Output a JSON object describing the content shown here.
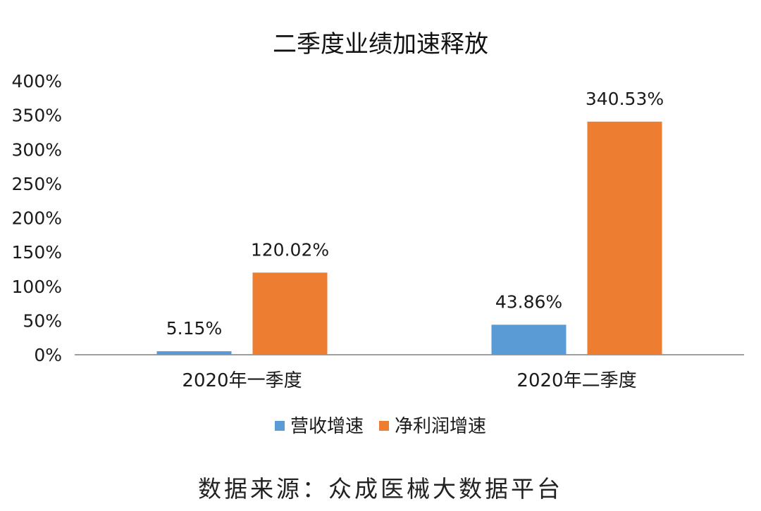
{
  "chart_data": {
    "type": "bar",
    "title": "二季度业绩加速释放",
    "categories": [
      "2020年一季度",
      "2020年二季度"
    ],
    "series": [
      {
        "name": "营收增速",
        "values": [
          5.15,
          43.86
        ],
        "labels": [
          "5.15%",
          "43.86%"
        ],
        "color": "#5b9bd5"
      },
      {
        "name": "净利润增速",
        "values": [
          120.02,
          340.53
        ],
        "labels": [
          "120.02%",
          "340.53%"
        ],
        "color": "#ed7d31"
      }
    ],
    "ylim": [
      0,
      400
    ],
    "yticks": [
      0,
      50,
      100,
      150,
      200,
      250,
      300,
      350,
      400
    ],
    "ytick_labels": [
      "0%",
      "50%",
      "100%",
      "150%",
      "200%",
      "250%",
      "300%",
      "350%",
      "400%"
    ],
    "xlabel": "",
    "ylabel": "",
    "grid": false,
    "legend_position": "bottom"
  },
  "source_text": "数据来源：众成医械大数据平台"
}
